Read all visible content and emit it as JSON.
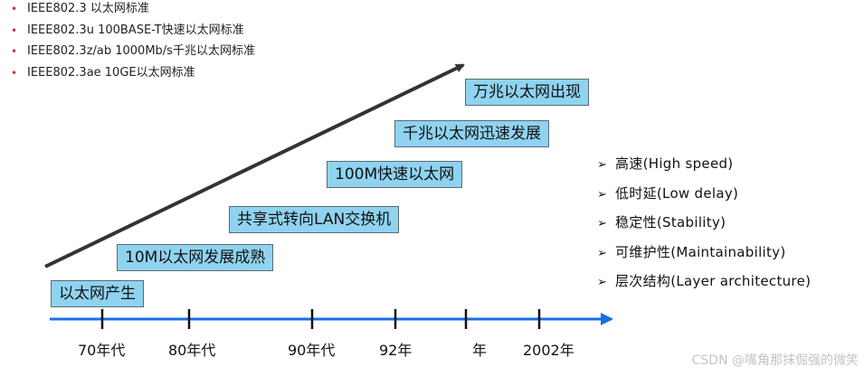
{
  "standards": [
    "IEEE802.3 以太网标准",
    "IEEE802.3u 100BASE-T快速以太网标准",
    "IEEE802.3z/ab  1000Mb/s千兆以太网标准",
    "IEEE802.3ae 10GE以太网标准"
  ],
  "stages": [
    "以太网产生",
    "10M以太网发展成熟",
    "共享式转向LAN交换机",
    "100M快速以太网",
    "千兆以太网迅速发展",
    "万兆以太网出现"
  ],
  "years": [
    "70年代",
    "80年代",
    "90年代",
    "92年",
    "年",
    "2002年"
  ],
  "goals": [
    "高速(High  speed)",
    "低时延(Low  delay)",
    "稳定性(Stability)",
    "可维护性(Maintainability)",
    "层次结构(Layer  architecture)"
  ],
  "watermark": "CSDN @嘴角那抹倔强的微笑",
  "colors": {
    "box_fill": "#8fd3f0",
    "timeline": "#1a6ee6",
    "arrow": "#333333",
    "bullet": "#c0392b"
  },
  "icons": {
    "goal_bullet": "triangle-right-icon"
  }
}
